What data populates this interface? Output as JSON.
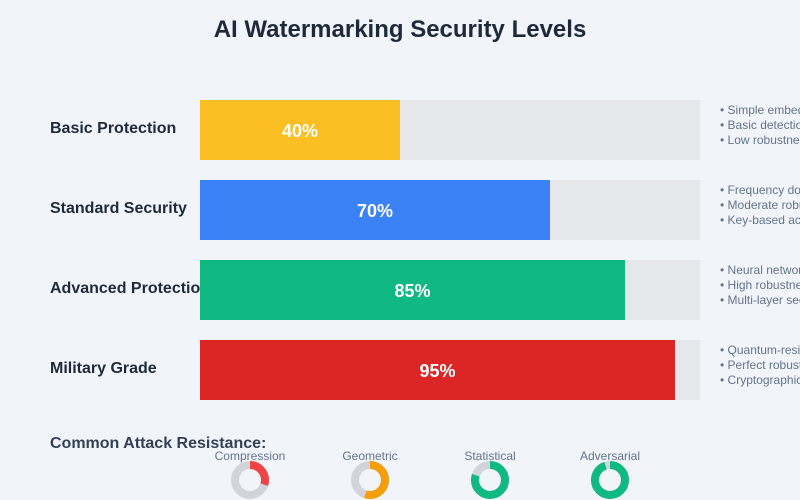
{
  "title": "AI Watermarking Security Levels",
  "chart_data": {
    "type": "bar",
    "orientation": "horizontal",
    "title": "AI Watermarking Security Levels",
    "xlim": [
      0,
      100
    ],
    "categories": [
      "Basic Protection",
      "Standard Security",
      "Advanced Protection",
      "Military Grade"
    ],
    "values": [
      40,
      70,
      85,
      95
    ],
    "value_labels": [
      "40%",
      "70%",
      "85%",
      "95%"
    ],
    "colors": [
      "#fbbf24",
      "#3b82f6",
      "#10b981",
      "#dc2626"
    ],
    "features": [
      [
        "• Simple embedding",
        "• Basic detection",
        "• Low robustness"
      ],
      [
        "• Frequency domain",
        "• Moderate robustness",
        "• Key-based access"
      ],
      [
        "• Neural network",
        "• High robustness",
        "• Multi-layer security"
      ],
      [
        "• Quantum-resistant",
        "• Perfect robustness",
        "• Cryptographic"
      ]
    ]
  },
  "attack_resistance": {
    "title": "Common Attack Resistance:",
    "items": [
      {
        "name": "Compression",
        "value": 0.3,
        "color": "#ef4444"
      },
      {
        "name": "Geometric",
        "value": 0.55,
        "color": "#f59e0b"
      },
      {
        "name": "Statistical",
        "value": 0.8,
        "color": "#10b981"
      },
      {
        "name": "Adversarial",
        "value": 0.95,
        "color": "#10b981"
      }
    ],
    "track_color": "#d1d5db"
  }
}
